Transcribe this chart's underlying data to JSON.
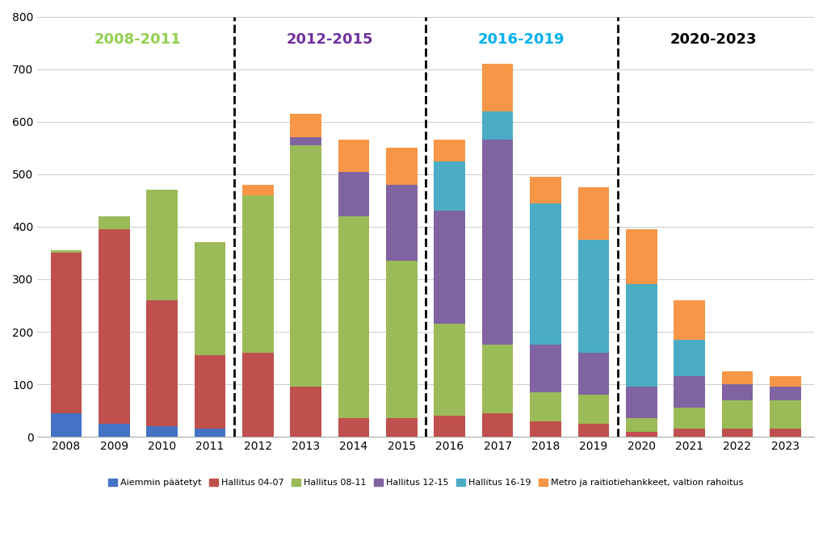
{
  "years": [
    2008,
    2009,
    2010,
    2011,
    2012,
    2013,
    2014,
    2015,
    2016,
    2017,
    2018,
    2019,
    2020,
    2021,
    2022,
    2023
  ],
  "aiemmin_paatetyt": [
    45,
    25,
    20,
    15,
    0,
    0,
    0,
    0,
    0,
    0,
    0,
    0,
    0,
    0,
    0,
    0
  ],
  "hallitus_04_07": [
    305,
    370,
    240,
    140,
    160,
    95,
    35,
    35,
    40,
    45,
    30,
    25,
    10,
    15,
    15,
    15
  ],
  "hallitus_08_11": [
    5,
    25,
    210,
    215,
    300,
    460,
    385,
    300,
    175,
    130,
    55,
    55,
    25,
    40,
    55,
    55
  ],
  "hallitus_12_15": [
    0,
    0,
    0,
    0,
    0,
    15,
    85,
    145,
    215,
    390,
    90,
    80,
    60,
    60,
    30,
    25
  ],
  "hallitus_16_19": [
    0,
    0,
    0,
    0,
    0,
    0,
    0,
    0,
    95,
    55,
    270,
    215,
    195,
    70,
    0,
    0
  ],
  "metro_raitio": [
    0,
    0,
    0,
    0,
    20,
    45,
    60,
    70,
    40,
    90,
    50,
    100,
    105,
    75,
    25,
    20
  ],
  "colors": {
    "aiemmin_paatetyt": "#4472C4",
    "hallitus_04_07": "#C0504D",
    "hallitus_08_11": "#9BBB59",
    "hallitus_12_15": "#8064A2",
    "hallitus_16_19": "#4BACC6",
    "metro_raitio": "#F79646"
  },
  "labels": {
    "aiemmin_paatetyt": "Aiemmin päätetyt",
    "hallitus_04_07": "Hallitus 04-07",
    "hallitus_08_11": "Hallitus 08-11",
    "hallitus_12_15": "Hallitus 12-15",
    "hallitus_16_19": "Hallitus 16-19",
    "metro_raitio": "Metro ja raitiotiehankkeet, valtion rahoitus"
  },
  "period_labels": [
    {
      "text": "2008-2011",
      "xi": 1.5,
      "color": "#92D050",
      "fontsize": 13,
      "fontweight": "bold"
    },
    {
      "text": "2012-2015",
      "xi": 5.5,
      "color": "#7030A0",
      "fontsize": 13,
      "fontweight": "bold"
    },
    {
      "text": "2016-2019",
      "xi": 9.5,
      "color": "#00B0F0",
      "fontsize": 13,
      "fontweight": "bold"
    },
    {
      "text": "2020-2023",
      "xi": 13.5,
      "color": "#000000",
      "fontsize": 13,
      "fontweight": "bold"
    }
  ],
  "dividers_xi": [
    3.5,
    7.5,
    11.5
  ],
  "ylim": [
    0,
    800
  ],
  "yticks": [
    0,
    100,
    200,
    300,
    400,
    500,
    600,
    700,
    800
  ],
  "background_color": "#FFFFFF",
  "bar_width": 0.65
}
